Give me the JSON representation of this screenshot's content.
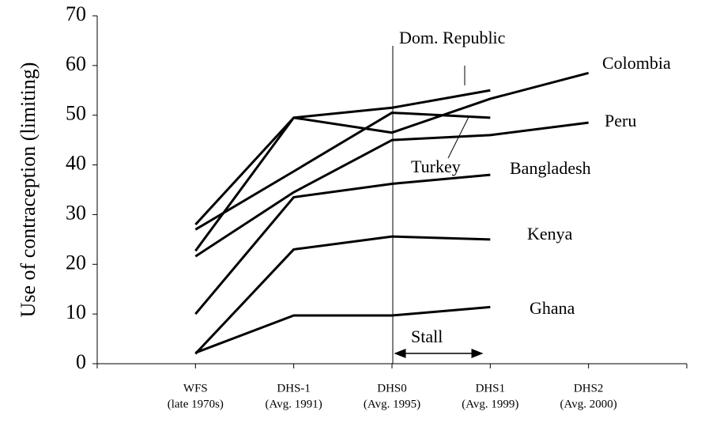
{
  "chart_data": {
    "type": "line",
    "y_label": "Use of contraception (limiting)",
    "categories": [
      [
        "WFS",
        "(late 1970s)"
      ],
      [
        "DHS-1",
        "(Avg. 1991)"
      ],
      [
        "DHS0",
        "(Avg. 1995)"
      ],
      [
        "DHS1",
        "(Avg. 1999)"
      ],
      [
        "DHS2",
        "(Avg. 2000)"
      ]
    ],
    "series": [
      {
        "name": "Ghana",
        "color": "#000000",
        "values": [
          2.2,
          9.7,
          9.7,
          11.4,
          null
        ]
      },
      {
        "name": "Kenya",
        "color": "#000000",
        "values": [
          2,
          23,
          25.6,
          25,
          null
        ]
      },
      {
        "name": "Bangladesh",
        "color": "#000000",
        "values": [
          10,
          33.5,
          36.2,
          38,
          null
        ]
      },
      {
        "name": "Peru",
        "color": "#000000",
        "values": [
          21.6,
          34.5,
          45,
          46,
          48.5
        ]
      },
      {
        "name": "Turkey",
        "color": "#000000",
        "values": [
          27,
          38.7,
          50.5,
          49.5,
          null
        ]
      },
      {
        "name": "Colombia",
        "color": "#000000",
        "values": [
          22.7,
          49.5,
          46.5,
          53.3,
          58.5
        ]
      },
      {
        "name": "Dom. Republic",
        "color": "#000000",
        "values": [
          28,
          49.5,
          51.5,
          55,
          null
        ]
      }
    ],
    "annotation": "Stall",
    "ylim": [
      0,
      70
    ],
    "yticks": [
      0,
      10,
      20,
      30,
      40,
      50,
      60,
      70
    ]
  }
}
